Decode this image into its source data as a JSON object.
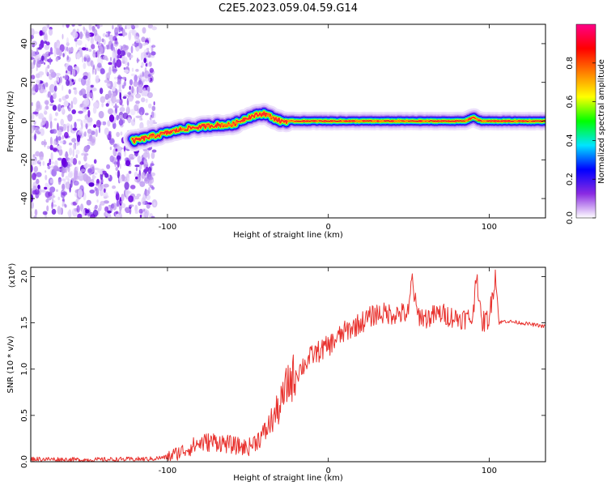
{
  "title": "C2E5.2023.059.04.59.G14",
  "chart_data": [
    {
      "type": "heatmap",
      "xlabel": "Height of straight line (km)",
      "ylabel": "Frequency (Hz)",
      "xlim": [
        -185,
        135
      ],
      "ylim": [
        -50,
        50
      ],
      "x_ticks": [
        -100,
        0,
        100
      ],
      "y_ticks": [
        -40,
        -20,
        0,
        20,
        40
      ],
      "colorbar": {
        "label": "Normalized spectral amplitude",
        "range": [
          0,
          1
        ],
        "ticks": [
          0.0,
          0.2,
          0.4,
          0.6,
          0.8
        ],
        "colors": [
          "#ffffff",
          "#8a2be2",
          "#0000ff",
          "#00e5ff",
          "#00ff00",
          "#ffff00",
          "#ff8000",
          "#ff0000",
          "#ff0088"
        ]
      },
      "noise_region": {
        "x": [
          -185,
          -108
        ],
        "y": [
          -50,
          50
        ]
      },
      "ridge": {
        "x": [
          -120,
          -110,
          -100,
          -90,
          -80,
          -70,
          -60,
          -50,
          -45,
          -40,
          -35,
          -30,
          -25,
          -20,
          -10,
          0,
          10,
          30,
          50,
          70,
          85,
          90,
          95,
          100,
          110,
          120,
          135
        ],
        "y": [
          -10,
          -8,
          -6,
          -4,
          -3,
          -2,
          -2,
          2,
          3,
          4,
          2,
          0,
          0,
          0,
          0,
          0,
          0,
          0,
          0,
          0,
          0,
          2,
          0,
          0,
          0,
          0,
          0
        ]
      }
    },
    {
      "type": "line",
      "xlabel": "Height of straight line (km)",
      "ylabel": "SNR (10 * v/v)",
      "y_multiplier": "(x10⁴)",
      "xlim": [
        -185,
        135
      ],
      "ylim": [
        0,
        2.1
      ],
      "x_ticks": [
        -100,
        0,
        100
      ],
      "y_ticks": [
        0.0,
        0.5,
        1.0,
        1.5,
        2.0
      ],
      "series": [
        {
          "color": "#e8322e",
          "x": [
            -185,
            -150,
            -110,
            -100,
            -90,
            -80,
            -70,
            -60,
            -50,
            -40,
            -30,
            -25,
            -20,
            -15,
            -10,
            -5,
            0,
            10,
            20,
            25,
            30,
            40,
            50,
            52,
            55,
            60,
            70,
            80,
            90,
            92,
            95,
            100,
            104,
            106,
            110,
            120,
            135
          ],
          "y": [
            0.03,
            0.02,
            0.03,
            0.05,
            0.12,
            0.2,
            0.22,
            0.18,
            0.15,
            0.3,
            0.6,
            0.85,
            0.95,
            1.05,
            1.15,
            1.2,
            1.25,
            1.4,
            1.5,
            1.55,
            1.6,
            1.6,
            1.6,
            2.0,
            1.6,
            1.55,
            1.6,
            1.55,
            1.55,
            2.1,
            1.5,
            1.55,
            2.05,
            1.5,
            1.52,
            1.5,
            1.46
          ]
        }
      ]
    }
  ]
}
